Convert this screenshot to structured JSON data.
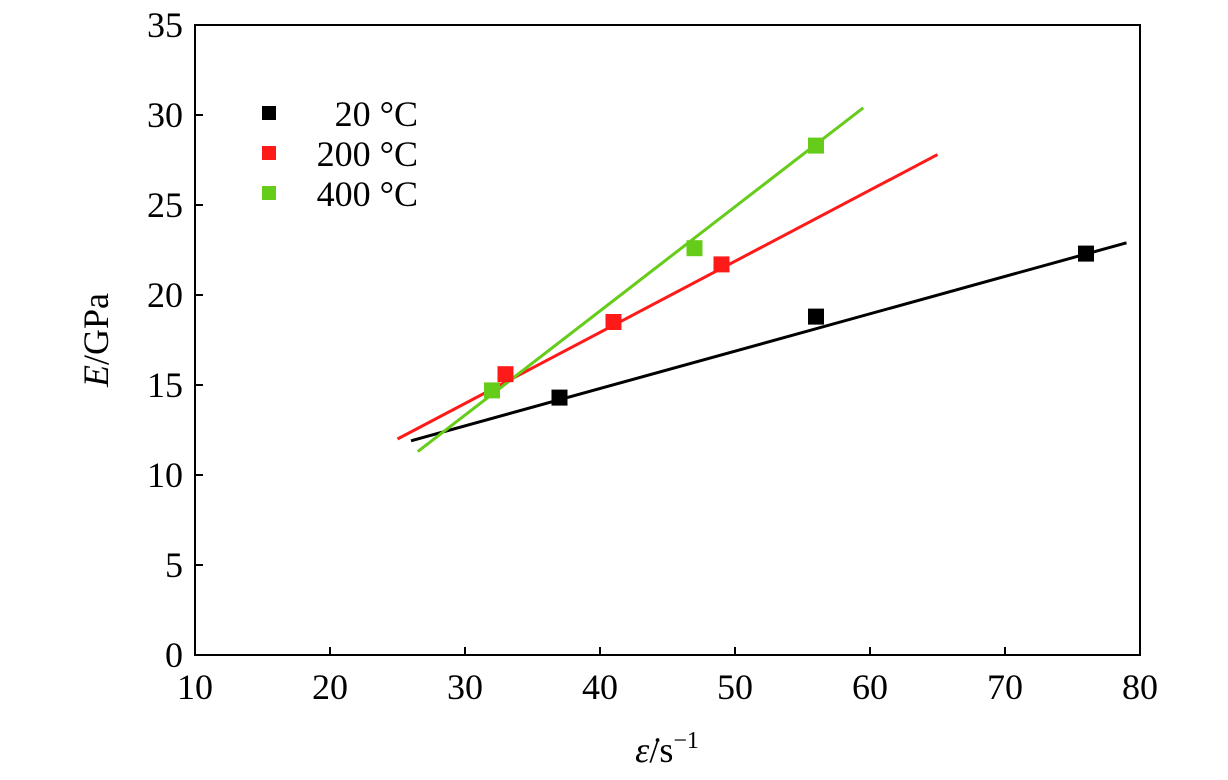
{
  "chart_data": {
    "type": "scatter",
    "xlabel": {
      "symbol": "ε̇",
      "rest": "/s",
      "sup": "−1"
    },
    "ylabel": {
      "symbol": "E",
      "rest": "/GPa"
    },
    "xlim": [
      10,
      80
    ],
    "ylim": [
      0,
      35
    ],
    "x_ticks": [
      10,
      20,
      30,
      40,
      50,
      60,
      70,
      80
    ],
    "y_ticks": [
      0,
      5,
      10,
      15,
      20,
      25,
      30,
      35
    ],
    "grid": false,
    "legend_position": "top-left",
    "series": [
      {
        "name": "20 °C",
        "color": "#000000",
        "marker": "square",
        "points": [
          [
            37,
            14.3
          ],
          [
            56,
            18.8
          ],
          [
            76,
            22.3
          ]
        ],
        "fit_line": [
          [
            26,
            11.9
          ],
          [
            79,
            22.9
          ]
        ]
      },
      {
        "name": "200 °C",
        "color": "#ff1a1a",
        "marker": "square",
        "points": [
          [
            33,
            15.6
          ],
          [
            41,
            18.5
          ],
          [
            49,
            21.7
          ]
        ],
        "fit_line": [
          [
            25,
            12.0
          ],
          [
            65,
            27.8
          ]
        ]
      },
      {
        "name": "400 °C",
        "color": "#66cc1a",
        "marker": "square",
        "points": [
          [
            32,
            14.7
          ],
          [
            47,
            22.6
          ],
          [
            56,
            28.3
          ]
        ],
        "fit_line": [
          [
            26.5,
            11.3
          ],
          [
            59.5,
            30.4
          ]
        ]
      }
    ]
  }
}
